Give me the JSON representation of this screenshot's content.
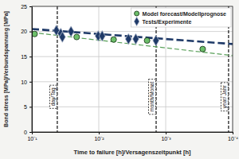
{
  "chart_data": {
    "type": "scatter",
    "x_label": "Time to failure [h]/Versagenszeitpunkt [h]",
    "y_label": "Bond stress [MPa]/Verbundspannung [MPa]",
    "log": "x",
    "grid": true,
    "legend": "top-right",
    "xlim": [
      0.1,
      0.0001
    ],
    "xticks": [
      {
        "value": 0.1,
        "label": "10⁻¹"
      },
      {
        "value": 0.01,
        "label": "10⁻²"
      },
      {
        "value": 0.001,
        "label": "10⁻³"
      },
      {
        "value": 0.0001,
        "label": "10⁻⁴"
      }
    ],
    "ylim": [
      0,
      25
    ],
    "yticks": [
      0,
      5,
      10,
      15,
      20,
      25
    ],
    "series": [
      {
        "name": "Model forecast/Modellprognose",
        "type": "scatter",
        "marker": "circle",
        "color": "#6dbf6a",
        "x": [
          0.091,
          0.0214,
          0.006,
          0.0019,
          0.00028
        ],
        "values": [
          19.5,
          18.9,
          18.4,
          18.2,
          16.5
        ]
      },
      {
        "name": "Tests/Experimente",
        "type": "scatter",
        "marker": "diamond",
        "color": "#1f3a68",
        "x": [
          0.043,
          0.037,
          0.035,
          0.026,
          0.0102,
          0.0089,
          0.0036,
          0.0028,
          0.0014
        ],
        "values": [
          20.2,
          19.6,
          18.9,
          20.0,
          19.1,
          19.1,
          18.5,
          18.5,
          18.2
        ]
      },
      {
        "type": "line",
        "line_style": "dashed",
        "color": "#1f3a68",
        "x": [
          0.1,
          0.0001
        ],
        "values": [
          20.5,
          17.5
        ]
      },
      {
        "type": "line",
        "line_style": "dashed",
        "color": "#5aa05a",
        "x": [
          0.1,
          0.0001
        ],
        "values": [
          19.8,
          15.2
        ]
      }
    ],
    "annotations": [
      {
        "text": "day/Tag",
        "x": 0.0417
      },
      {
        "text": "month/Monat",
        "x": 0.00139
      },
      {
        "text": "year/ Jahr",
        "x": 0.000115
      }
    ]
  }
}
